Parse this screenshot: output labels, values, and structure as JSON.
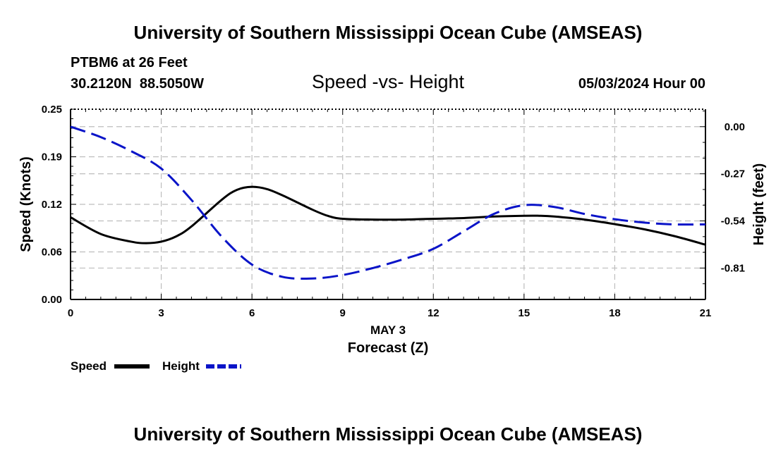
{
  "header": {
    "title": "University of Southern Mississippi Ocean Cube (AMSEAS)",
    "station": "PTBM6 at 26 Feet",
    "coords": "30.2120N  88.5050W",
    "plot_title": "Speed -vs- Height",
    "datetime": "05/03/2024 Hour 00"
  },
  "footer": {
    "title": "University of Southern Mississippi Ocean Cube (AMSEAS)"
  },
  "colors": {
    "speed": "#000000",
    "height": "#0a14c8",
    "grid": "#bdbdbd"
  },
  "chart_data": {
    "type": "line",
    "title": "Speed -vs- Height",
    "xlabel": "Forecast (Z)",
    "date_label": "MAY 3",
    "ylabel": "Speed (Knots)",
    "y2label": "Height (feet)",
    "xlim": [
      0,
      21
    ],
    "ylim": [
      0,
      0.25
    ],
    "y2lim": [
      -0.99,
      0.1
    ],
    "x_ticks": [
      0,
      3,
      6,
      9,
      12,
      15,
      18,
      21
    ],
    "y_ticks": [
      "0.00",
      "0.06",
      "0.12",
      "0.19",
      "0.25"
    ],
    "y_tick_values": [
      0,
      0.0625,
      0.125,
      0.1875,
      0.25
    ],
    "y2_ticks": [
      "0.00",
      "-0.27",
      "-0.54",
      "-0.81"
    ],
    "y2_tick_values": [
      0,
      -0.27,
      -0.54,
      -0.81
    ],
    "grid": true,
    "legend": [
      {
        "label": "Speed",
        "series": "speed"
      },
      {
        "label": "Height",
        "series": "height"
      }
    ],
    "series": [
      {
        "name": "Speed",
        "axis": "left",
        "style": "solid",
        "x": [
          0,
          1,
          2,
          2.5,
          3,
          3.5,
          4,
          5,
          5.5,
          6,
          6.5,
          7,
          8,
          8.5,
          9,
          10,
          11,
          12,
          13,
          14,
          15,
          15.5,
          16,
          17,
          18,
          19,
          20,
          21
        ],
        "values": [
          0.108,
          0.086,
          0.076,
          0.074,
          0.076,
          0.083,
          0.096,
          0.131,
          0.144,
          0.148,
          0.145,
          0.137,
          0.118,
          0.11,
          0.106,
          0.105,
          0.105,
          0.106,
          0.107,
          0.109,
          0.11,
          0.11,
          0.109,
          0.105,
          0.099,
          0.092,
          0.083,
          0.072
        ]
      },
      {
        "name": "Height",
        "axis": "right",
        "style": "dashed",
        "x": [
          0,
          1,
          2,
          3,
          4,
          5,
          6,
          7,
          8,
          9,
          10,
          11,
          12,
          13,
          14,
          15,
          16,
          17,
          18,
          19,
          20,
          21
        ],
        "values": [
          0.0,
          -0.06,
          -0.14,
          -0.24,
          -0.42,
          -0.63,
          -0.79,
          -0.86,
          -0.87,
          -0.85,
          -0.81,
          -0.76,
          -0.7,
          -0.6,
          -0.5,
          -0.45,
          -0.46,
          -0.5,
          -0.53,
          -0.55,
          -0.56,
          -0.56
        ]
      }
    ]
  }
}
